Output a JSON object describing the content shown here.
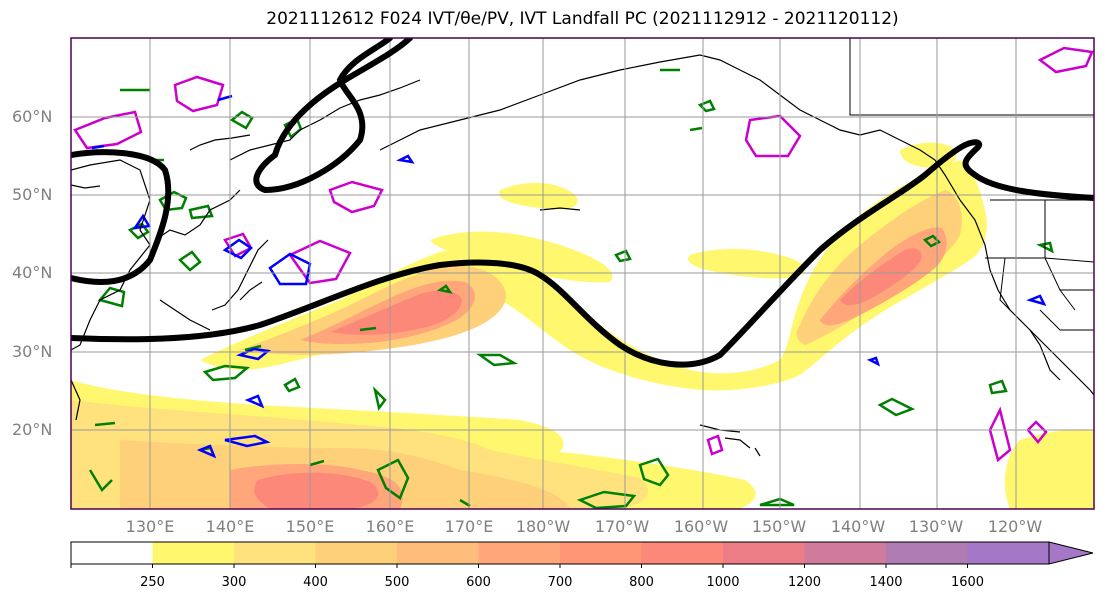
{
  "title": "2021112612 F024 IVT/θe/PV, IVT Landfall PC (2021112912 - 2021120112)",
  "lat_labels": [
    "60°N",
    "50°N",
    "40°N",
    "30°N",
    "20°N"
  ],
  "lon_labels": [
    "130°E",
    "140°E",
    "150°E",
    "160°E",
    "170°E",
    "180°W",
    "170°W",
    "160°W",
    "150°W",
    "140°W",
    "130°W",
    "120°W"
  ],
  "colorbar": {
    "levels": [
      "250",
      "300",
      "400",
      "500",
      "600",
      "700",
      "800",
      "1000",
      "1200",
      "1400",
      "1600"
    ],
    "colors": [
      "#ffffff",
      "#fff86e",
      "#ffe27e",
      "#ffd07a",
      "#ffbd7c",
      "#ffa77a",
      "#ff9676",
      "#fb8878",
      "#ec7d86",
      "#d07a9c",
      "#b07cb4",
      "#a478c6"
    ],
    "extend": "max"
  },
  "colors": {
    "theta_e_contour": "#008000",
    "pv_contour_magenta": "#cc00cc",
    "pv_contour_blue": "#0000ff",
    "landfall_curve": "#000000",
    "coastline": "#000000",
    "gridline": "#9a9a9a",
    "frame": "#4b0055"
  }
}
